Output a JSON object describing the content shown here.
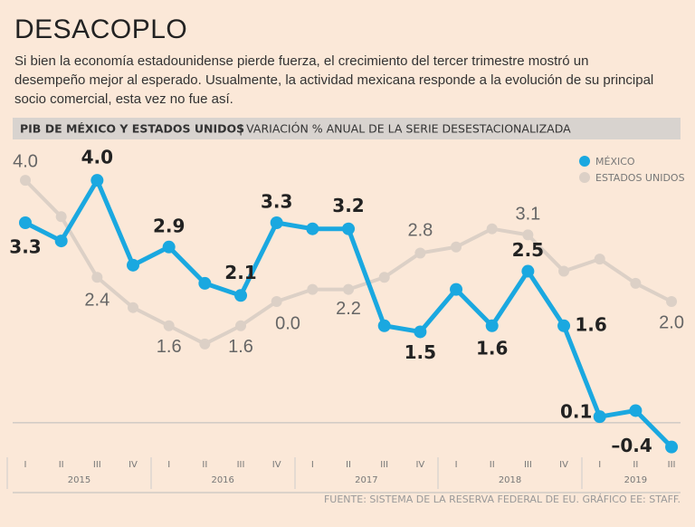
{
  "chart_data": {
    "type": "line",
    "title": "DESACOPLO",
    "subtitle": [
      "Si bien la economía estadounidense pierde fuerza, el crecimiento del tercer trimestre mostró un",
      "desempeño mejor al esperado. Usualmente, la actividad mexicana responde a la evolución de su principal",
      "socio comercial, esta vez no fue así."
    ],
    "chart_title": "PIB DE MÉXICO Y ESTADOS UNIDOS",
    "chart_subtitle": "| VARIACIÓN % ANUAL DE LA SERIE DESESTACIONALIZADA",
    "categories": [
      "I",
      "II",
      "III",
      "IV",
      "I",
      "II",
      "III",
      "IV",
      "I",
      "II",
      "III",
      "IV",
      "I",
      "II",
      "III",
      "IV",
      "I",
      "II",
      "III"
    ],
    "years": [
      "2015",
      "2016",
      "2017",
      "2018",
      "2019"
    ],
    "ylim": [
      -0.6,
      4.6
    ],
    "series": [
      {
        "name": "MÉXICO",
        "color": "#1aa8e0",
        "values": [
          3.3,
          3.0,
          4.0,
          2.6,
          2.9,
          2.3,
          2.1,
          3.3,
          3.2,
          3.2,
          1.6,
          1.5,
          2.2,
          1.6,
          2.5,
          1.6,
          0.1,
          0.2,
          -0.4
        ],
        "value_labels": [
          "3.3",
          null,
          "4.0",
          null,
          "2.9",
          null,
          "2.1",
          "3.3",
          null,
          "3.2",
          null,
          "1.5",
          null,
          "1.6",
          "2.5",
          "1.6",
          "0.1",
          null,
          "–0.4"
        ]
      },
      {
        "name": "ESTADOS UNIDOS",
        "color": "#dcd0c6",
        "values": [
          4.0,
          3.4,
          2.4,
          1.9,
          1.6,
          1.3,
          1.6,
          2.0,
          2.2,
          2.2,
          2.4,
          2.8,
          2.9,
          3.2,
          3.1,
          2.5,
          2.7,
          2.3,
          2.0
        ],
        "value_labels": [
          "4.0",
          null,
          "2.4",
          null,
          "1.6",
          null,
          "1.6",
          null,
          null,
          "2.2",
          null,
          "2.8",
          null,
          null,
          "3.1",
          null,
          null,
          null,
          "2.0"
        ]
      }
    ],
    "annotations": [
      "0.0"
    ],
    "source": "FUENTE: SISTEMA DE LA RESERVA FEDERAL DE EU. GRÁFICO EE: STAFF."
  }
}
